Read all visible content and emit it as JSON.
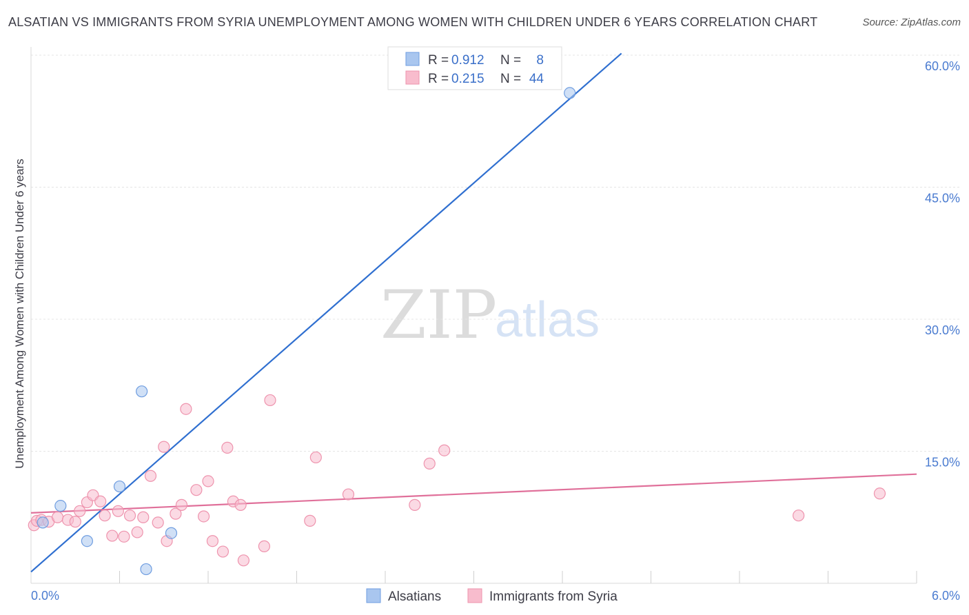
{
  "header": {
    "title": "ALSATIAN VS IMMIGRANTS FROM SYRIA UNEMPLOYMENT AMONG WOMEN WITH CHILDREN UNDER 6 YEARS CORRELATION CHART",
    "source": "Source: ZipAtlas.com"
  },
  "watermark": {
    "zip": "ZIP",
    "atlas": "atlas"
  },
  "legend": {
    "rows": [
      {
        "r_label": "R =",
        "r_value": "0.912",
        "n_label": "N =",
        "n_value": "8",
        "color": "#a9c6ef",
        "stroke": "#6f9de0"
      },
      {
        "r_label": "R =",
        "r_value": "0.215",
        "n_label": "N =",
        "n_value": "44",
        "color": "#f8bccd",
        "stroke": "#ee93ad"
      }
    ]
  },
  "chart_data": {
    "type": "scatter",
    "title": "ALSATIAN VS IMMIGRANTS FROM SYRIA UNEMPLOYMENT AMONG WOMEN WITH CHILDREN UNDER 6 YEARS CORRELATION CHART",
    "xlabel": "",
    "ylabel": "Unemployment Among Women with Children Under 6 years",
    "xlim": [
      0,
      6
    ],
    "ylim": [
      0,
      60
    ],
    "x_tick_labels": [
      "0.0%",
      "6.0%"
    ],
    "y_ticks": [
      15,
      30,
      45,
      60
    ],
    "y_tick_labels": [
      "15.0%",
      "30.0%",
      "45.0%",
      "60.0%"
    ],
    "grid": true,
    "series": [
      {
        "name": "Alsatians",
        "color": "#a9c6ef",
        "stroke": "#6f9de0",
        "line_color": "#2f6fd0",
        "trend": {
          "x0": 0.0,
          "y0": 1.3,
          "x1": 4.0,
          "y1": 60.2
        },
        "points": [
          {
            "x": 0.08,
            "y": 6.9
          },
          {
            "x": 0.2,
            "y": 8.8
          },
          {
            "x": 0.38,
            "y": 4.8
          },
          {
            "x": 0.6,
            "y": 11.0
          },
          {
            "x": 0.75,
            "y": 21.8
          },
          {
            "x": 0.78,
            "y": 1.6
          },
          {
            "x": 0.95,
            "y": 5.7
          },
          {
            "x": 3.65,
            "y": 55.7
          }
        ]
      },
      {
        "name": "Immigrants from Syria",
        "color": "#f8bccd",
        "stroke": "#ee93ad",
        "line_color": "#e0709a",
        "trend": {
          "x0": 0.0,
          "y0": 8.0,
          "x1": 6.0,
          "y1": 12.4
        },
        "points": [
          {
            "x": 0.02,
            "y": 6.6
          },
          {
            "x": 0.04,
            "y": 7.1
          },
          {
            "x": 0.07,
            "y": 7.2
          },
          {
            "x": 0.12,
            "y": 7.0
          },
          {
            "x": 0.18,
            "y": 7.5
          },
          {
            "x": 0.25,
            "y": 7.2
          },
          {
            "x": 0.3,
            "y": 7.0
          },
          {
            "x": 0.33,
            "y": 8.2
          },
          {
            "x": 0.38,
            "y": 9.2
          },
          {
            "x": 0.42,
            "y": 10.0
          },
          {
            "x": 0.47,
            "y": 9.3
          },
          {
            "x": 0.5,
            "y": 7.7
          },
          {
            "x": 0.55,
            "y": 5.4
          },
          {
            "x": 0.59,
            "y": 8.2
          },
          {
            "x": 0.63,
            "y": 5.3
          },
          {
            "x": 0.67,
            "y": 7.7
          },
          {
            "x": 0.72,
            "y": 5.8
          },
          {
            "x": 0.76,
            "y": 7.5
          },
          {
            "x": 0.81,
            "y": 12.2
          },
          {
            "x": 0.86,
            "y": 6.9
          },
          {
            "x": 0.9,
            "y": 15.5
          },
          {
            "x": 0.92,
            "y": 4.8
          },
          {
            "x": 0.98,
            "y": 7.9
          },
          {
            "x": 1.02,
            "y": 8.9
          },
          {
            "x": 1.05,
            "y": 19.8
          },
          {
            "x": 1.12,
            "y": 10.6
          },
          {
            "x": 1.17,
            "y": 7.6
          },
          {
            "x": 1.2,
            "y": 11.6
          },
          {
            "x": 1.23,
            "y": 4.8
          },
          {
            "x": 1.3,
            "y": 3.6
          },
          {
            "x": 1.33,
            "y": 15.4
          },
          {
            "x": 1.37,
            "y": 9.3
          },
          {
            "x": 1.42,
            "y": 8.9
          },
          {
            "x": 1.44,
            "y": 2.6
          },
          {
            "x": 1.58,
            "y": 4.2
          },
          {
            "x": 1.62,
            "y": 20.8
          },
          {
            "x": 1.89,
            "y": 7.1
          },
          {
            "x": 1.93,
            "y": 14.3
          },
          {
            "x": 2.15,
            "y": 10.1
          },
          {
            "x": 2.6,
            "y": 8.9
          },
          {
            "x": 2.7,
            "y": 13.6
          },
          {
            "x": 2.8,
            "y": 15.1
          },
          {
            "x": 5.2,
            "y": 7.7
          },
          {
            "x": 5.75,
            "y": 10.2
          }
        ]
      }
    ]
  }
}
